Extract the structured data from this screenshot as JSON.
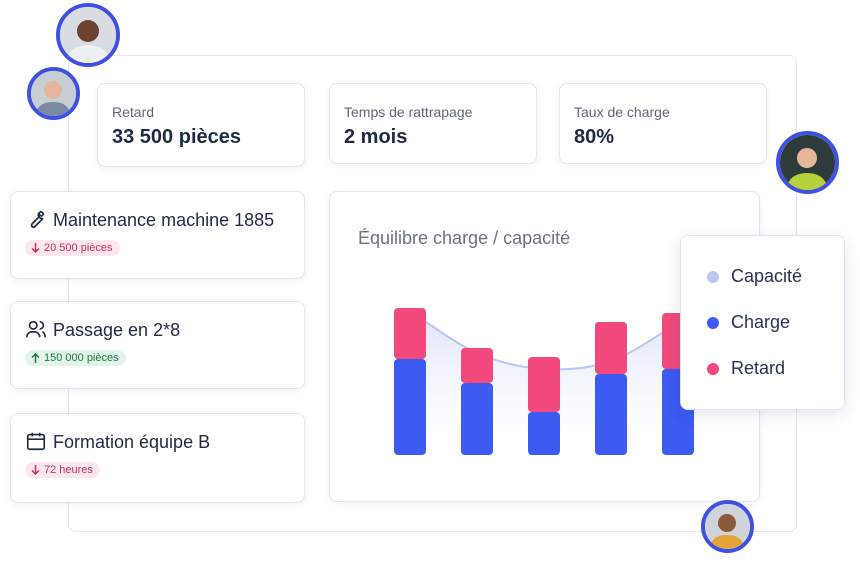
{
  "kpis": [
    {
      "label": "Retard",
      "value": "33 500 pièces"
    },
    {
      "label": "Temps de rattrapage",
      "value": "2 mois"
    },
    {
      "label": "Taux de charge",
      "value": "80%"
    }
  ],
  "actions": [
    {
      "title": "Maintenance machine 1885",
      "badge": "20 500 pièces"
    },
    {
      "title": "Passage en 2*8",
      "badge": "150 000 pièces"
    },
    {
      "title": "Formation équipe B",
      "badge": "72 heures"
    }
  ],
  "chart_data": {
    "type": "bar",
    "title": "Équilibre charge / capacité",
    "categories": [
      null,
      null,
      null,
      null,
      null
    ],
    "series": [
      {
        "name": "Capacité",
        "color": "#b9c5f2",
        "type": "area",
        "values": [
          144,
          102,
          86,
          94,
          132
        ]
      },
      {
        "name": "Charge",
        "color": "#3d5af1",
        "values": [
          96,
          72,
          43,
          81,
          86
        ]
      },
      {
        "name": "Retard",
        "color": "#f1497b",
        "values": [
          51,
          35,
          55,
          52,
          56
        ]
      }
    ]
  }
}
